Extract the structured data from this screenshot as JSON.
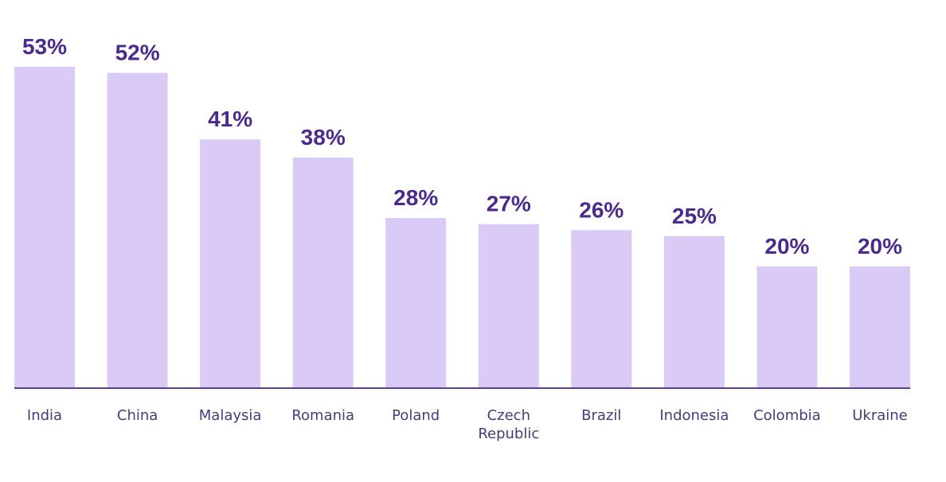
{
  "colors": {
    "bar": "#dacbf6",
    "value_text": "#4b2a8e",
    "axis": "#5b3f9c",
    "category_text": "#4a3a7a"
  },
  "chart_data": {
    "type": "bar",
    "title": "",
    "xlabel": "",
    "ylabel": "",
    "ylim": [
      0,
      53
    ],
    "grid": false,
    "categories": [
      "India",
      "China",
      "Malaysia",
      "Romania",
      "Poland",
      "Czech Republic",
      "Brazil",
      "Indonesia",
      "Colombia",
      "Ukraine"
    ],
    "category_lines": [
      [
        "India"
      ],
      [
        "China"
      ],
      [
        "Malaysia"
      ],
      [
        "Romania"
      ],
      [
        "Poland"
      ],
      [
        "Czech",
        "Republic"
      ],
      [
        "Brazil"
      ],
      [
        "Indonesia"
      ],
      [
        "Colombia"
      ],
      [
        "Ukraine"
      ]
    ],
    "values": [
      53,
      52,
      41,
      38,
      28,
      27,
      26,
      25,
      20,
      20
    ],
    "value_labels": [
      "53%",
      "52%",
      "41%",
      "38%",
      "28%",
      "27%",
      "26%",
      "25%",
      "20%",
      "20%"
    ]
  }
}
